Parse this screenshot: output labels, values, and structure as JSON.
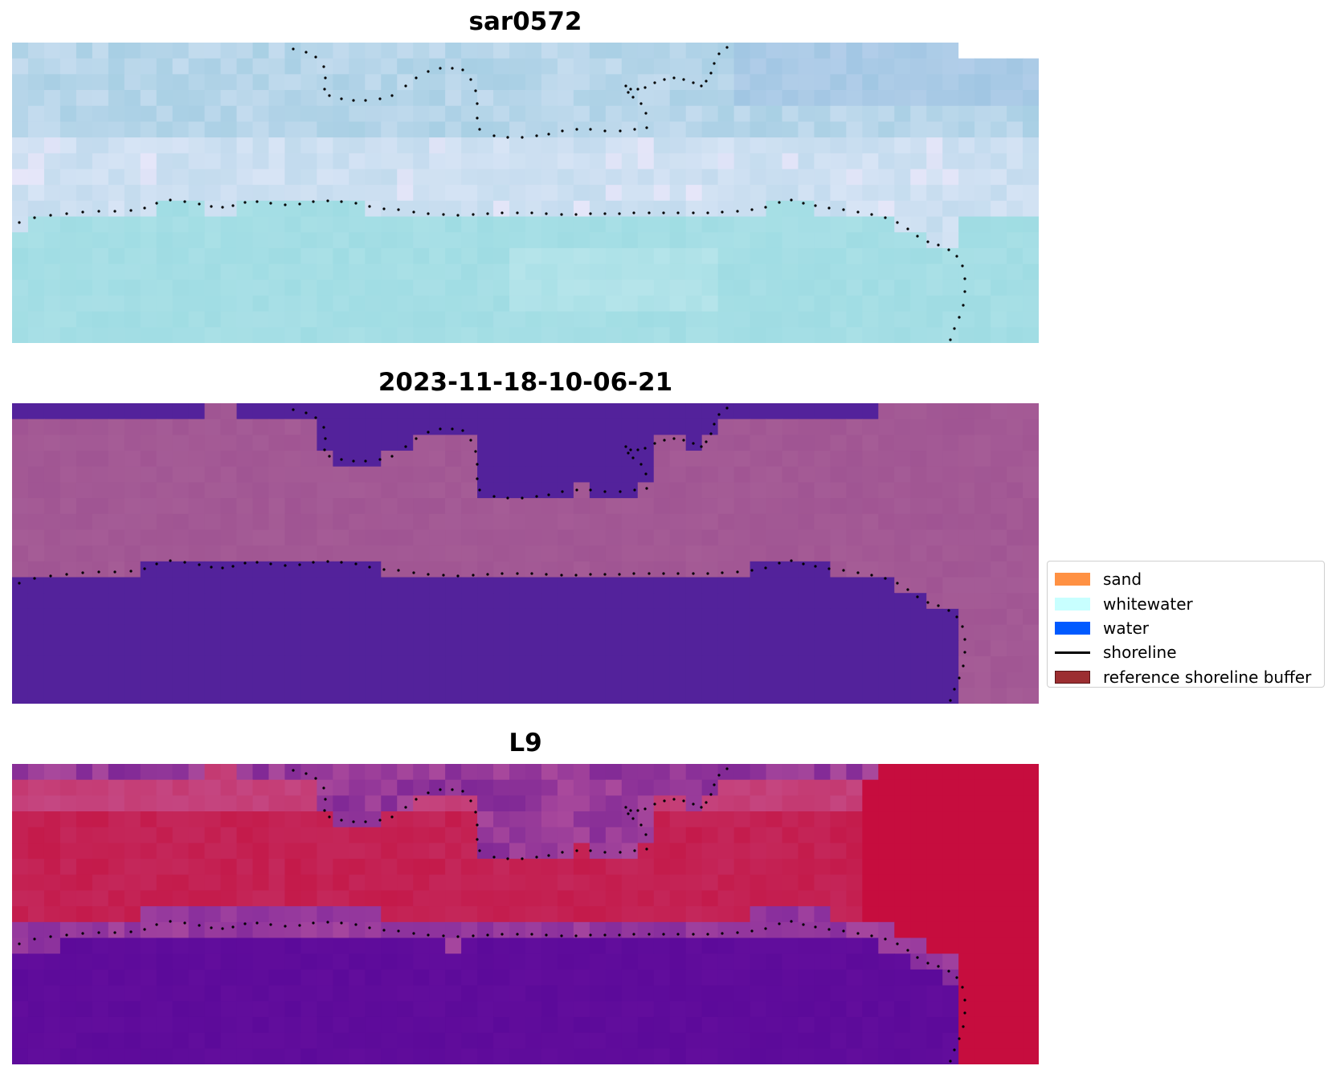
{
  "panels": [
    {
      "title": "sar0572",
      "image": "RGB satellite image"
    },
    {
      "title": "2023-11-18-10-06-21",
      "image": "classified image"
    },
    {
      "title": "L9",
      "image": "MNDWI image"
    }
  ],
  "legend": {
    "items": [
      {
        "label": "sand",
        "color": "#ff9143",
        "kind": "patch"
      },
      {
        "label": "whitewater",
        "color": "#c8ffff",
        "kind": "patch"
      },
      {
        "label": "water",
        "color": "#005aff",
        "kind": "patch"
      },
      {
        "label": "shoreline",
        "color": "#000000",
        "kind": "line"
      },
      {
        "label": "reference shoreline buffer",
        "color": "#9c2e31",
        "kind": "patch"
      }
    ]
  },
  "colors": {
    "rgb_water": "#9fdce3",
    "rgb_band_light": "#d7e4f5",
    "rgb_band_blue": "#a8cfe4",
    "class_water": "#53229b",
    "class_land": "#a55c96",
    "mndwi_water": "#5c0a9a",
    "mndwi_land": "#c41a4a",
    "mndwi_mid": "#c55fa0",
    "shoreline_dots": "#000000"
  }
}
